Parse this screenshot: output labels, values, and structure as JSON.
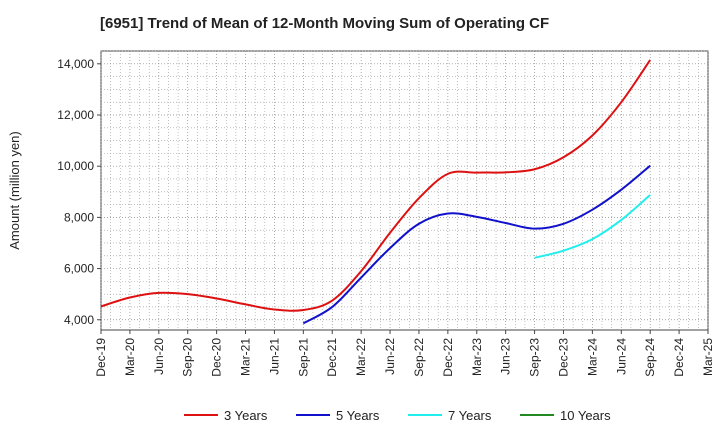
{
  "chart_data": {
    "type": "line",
    "title": "[6951]  Trend of Mean of 12-Month Moving Sum of Operating CF",
    "xlabel": "",
    "ylabel": "Amount (million yen)",
    "ylim": [
      3600,
      14500
    ],
    "y_ticks": [
      4000,
      6000,
      8000,
      10000,
      12000,
      14000
    ],
    "y_tick_labels": [
      "4,000",
      "6,000",
      "8,000",
      "10,000",
      "12,000",
      "14,000"
    ],
    "x_tick_labels": [
      "Dec-19",
      "Mar-20",
      "Jun-20",
      "Sep-20",
      "Dec-20",
      "Mar-21",
      "Jun-21",
      "Sep-21",
      "Dec-21",
      "Mar-22",
      "Jun-22",
      "Sep-22",
      "Dec-22",
      "Mar-23",
      "Jun-23",
      "Sep-23",
      "Dec-23",
      "Mar-24",
      "Jun-24",
      "Sep-24",
      "Dec-24",
      "Mar-25"
    ],
    "grid": true,
    "legend_position": "bottom",
    "series": [
      {
        "name": "3 Years",
        "color": "#dd1111",
        "points": [
          [
            0,
            4520
          ],
          [
            1,
            4870
          ],
          [
            2,
            5050
          ],
          [
            3,
            5000
          ],
          [
            4,
            4830
          ],
          [
            5,
            4600
          ],
          [
            6,
            4400
          ],
          [
            7,
            4380
          ],
          [
            8,
            4750
          ],
          [
            9,
            5900
          ],
          [
            10,
            7400
          ],
          [
            11,
            8750
          ],
          [
            12,
            9700
          ],
          [
            13,
            9750
          ],
          [
            14,
            9760
          ],
          [
            15,
            9880
          ],
          [
            16,
            10350
          ],
          [
            17,
            11200
          ],
          [
            18,
            12500
          ],
          [
            19,
            14150
          ]
        ]
      },
      {
        "name": "5 Years",
        "color": "#1111cc",
        "points": [
          [
            7,
            3860
          ],
          [
            8,
            4500
          ],
          [
            9,
            5650
          ],
          [
            10,
            6800
          ],
          [
            11,
            7750
          ],
          [
            12,
            8150
          ],
          [
            13,
            8020
          ],
          [
            14,
            7780
          ],
          [
            15,
            7560
          ],
          [
            16,
            7750
          ],
          [
            17,
            8300
          ],
          [
            18,
            9080
          ],
          [
            19,
            10020
          ]
        ]
      },
      {
        "name": "7 Years",
        "color": "#22eeee",
        "points": [
          [
            15,
            6420
          ],
          [
            16,
            6700
          ],
          [
            17,
            7150
          ],
          [
            18,
            7900
          ],
          [
            19,
            8880
          ]
        ]
      },
      {
        "name": "10 Years",
        "color": "#228822",
        "points": []
      }
    ]
  }
}
